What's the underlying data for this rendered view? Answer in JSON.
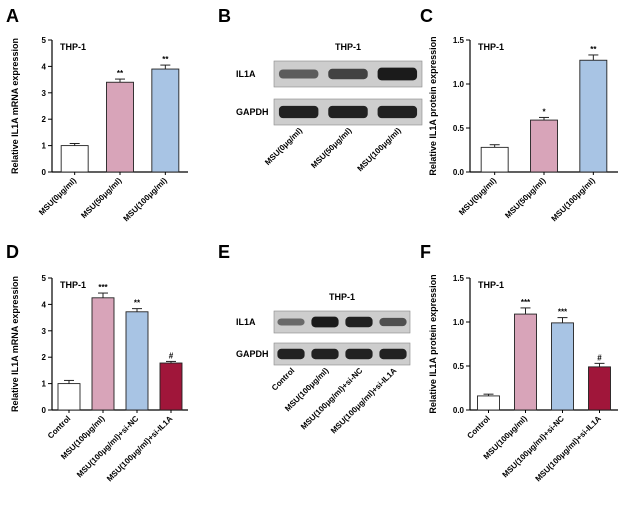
{
  "chart_data": [
    {
      "panel": "A",
      "type": "bar",
      "title": "THP-1",
      "ylabel": "Relative IL1A mRNA expression",
      "ylim": [
        0,
        5
      ],
      "yticks": [
        0,
        1,
        2,
        3,
        4,
        5
      ],
      "categories": [
        "MSU(0μg/ml)",
        "MSU(50μg/ml)",
        "MSU(100μg/ml)"
      ],
      "values": [
        1.0,
        3.4,
        3.9
      ],
      "errors": [
        0.08,
        0.12,
        0.15
      ],
      "significance": [
        "",
        "**",
        "**"
      ],
      "colors": [
        "#ffffff",
        "#d8a4b9",
        "#a8c4e4"
      ]
    },
    {
      "panel": "C",
      "type": "bar",
      "title": "THP-1",
      "ylabel": "Relative IL1A protein expression",
      "ylim": [
        0,
        1.5
      ],
      "yticks": [
        "0.0",
        "0.5",
        "1.0",
        "1.5"
      ],
      "categories": [
        "MSU(0μg/ml)",
        "MSU(50μg/ml)",
        "MSU(100μg/ml)"
      ],
      "values": [
        0.28,
        0.59,
        1.27
      ],
      "errors": [
        0.03,
        0.03,
        0.06
      ],
      "significance": [
        "",
        "*",
        "**"
      ],
      "colors": [
        "#ffffff",
        "#d8a4b9",
        "#a8c4e4"
      ]
    },
    {
      "panel": "D",
      "type": "bar",
      "title": "THP-1",
      "ylabel": "Relative IL1A mRNA expression",
      "ylim": [
        0,
        5
      ],
      "yticks": [
        0,
        1,
        2,
        3,
        4,
        5
      ],
      "categories": [
        "Control",
        "MSU(100μg/ml)",
        "MSU(100μg/ml)+si-NC",
        "MSU(100μg/ml)+si-IL1A"
      ],
      "values": [
        1.0,
        4.25,
        3.72,
        1.78
      ],
      "errors": [
        0.12,
        0.18,
        0.12,
        0.06
      ],
      "significance": [
        "",
        "***",
        "**",
        "#"
      ],
      "colors": [
        "#ffffff",
        "#d8a4b9",
        "#a8c4e4",
        "#a0163a"
      ]
    },
    {
      "panel": "F",
      "type": "bar",
      "title": "THP-1",
      "ylabel": "Relative IL1A protein expression",
      "ylim": [
        0,
        1.5
      ],
      "yticks": [
        "0.0",
        "0.5",
        "1.0",
        "1.5"
      ],
      "categories": [
        "Control",
        "MSU(100μg/ml)",
        "MSU(100μg/ml)+si-NC",
        "MSU(100μg/ml)+si-IL1A"
      ],
      "values": [
        0.16,
        1.09,
        0.99,
        0.49
      ],
      "errors": [
        0.02,
        0.07,
        0.06,
        0.04
      ],
      "significance": [
        "",
        "***",
        "***",
        "#"
      ],
      "colors": [
        "#ffffff",
        "#d8a4b9",
        "#a8c4e4",
        "#a0163a"
      ]
    }
  ],
  "blots": [
    {
      "panel": "B",
      "title": "THP-1",
      "rows": [
        "IL1A",
        "GAPDH"
      ],
      "lanes": [
        "MSU(0μg/ml)",
        "MSU(50μg/ml)",
        "MSU(100μg/ml)"
      ],
      "intensity": [
        [
          0.45,
          0.65,
          0.95
        ],
        [
          0.9,
          0.9,
          0.9
        ]
      ]
    },
    {
      "panel": "E",
      "title": "THP-1",
      "rows": [
        "IL1A",
        "GAPDH"
      ],
      "lanes": [
        "Control",
        "MSU(100μg/ml)",
        "MSU(100μg/ml)+si-NC",
        "MSU(100μg/ml)+si-IL1A"
      ],
      "intensity": [
        [
          0.35,
          0.95,
          0.9,
          0.55
        ],
        [
          0.9,
          0.9,
          0.9,
          0.9
        ]
      ]
    }
  ]
}
